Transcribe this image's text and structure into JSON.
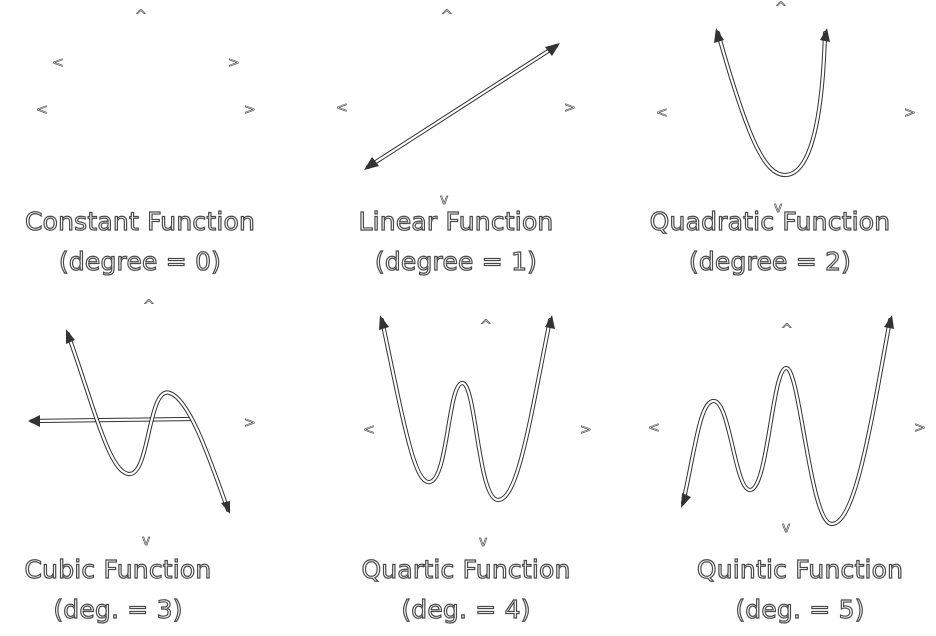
{
  "panels": [
    {
      "id": "constant",
      "title": "Constant Function",
      "subtitle": "(degree = 0)",
      "axis_marks": {
        "up": "^",
        "down": "",
        "left": "<",
        "right": ">"
      },
      "extra_marks": [
        "<",
        ">"
      ]
    },
    {
      "id": "linear",
      "title": "Linear Function",
      "subtitle": "(degree = 1)",
      "axis_marks": {
        "up": "^",
        "down": "v",
        "left": "<",
        "right": ">"
      }
    },
    {
      "id": "quadratic",
      "title": "Quadratic Function",
      "subtitle": "(degree = 2)",
      "axis_marks": {
        "up": "^",
        "down": "v",
        "left": "<",
        "right": ">"
      }
    },
    {
      "id": "cubic",
      "title": "Cubic Function",
      "subtitle": "(deg. = 3)",
      "axis_marks": {
        "up": "^",
        "down": "v",
        "left": "",
        "right": ">"
      }
    },
    {
      "id": "quartic",
      "title": "Quartic Function",
      "subtitle": "(deg. = 4)",
      "axis_marks": {
        "up": "^",
        "down": "v",
        "left": "<",
        "right": ">"
      }
    },
    {
      "id": "quintic",
      "title": "Quintic Function",
      "subtitle": "(deg. = 5)",
      "axis_marks": {
        "up": "^",
        "down": "v",
        "left": "<",
        "right": ">"
      }
    }
  ],
  "colors": {
    "background": "#ffffff",
    "curve_outline": "#333333",
    "curve_fill": "#ffffff",
    "text_outline": "#4a4a4a"
  }
}
